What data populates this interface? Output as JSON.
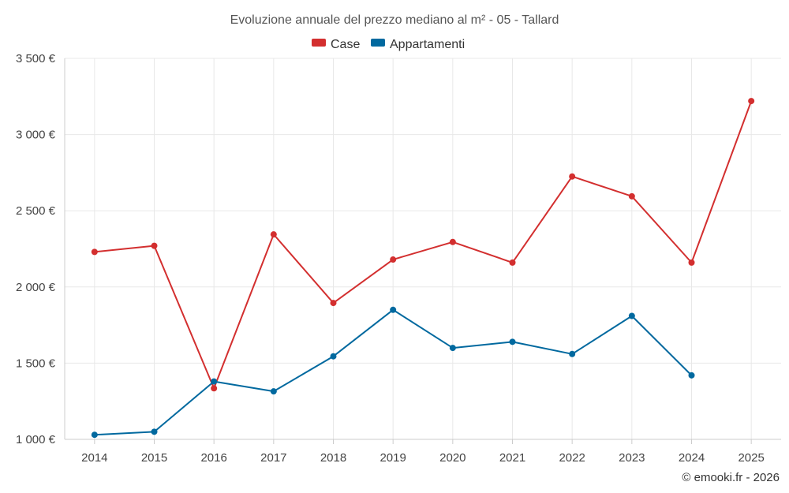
{
  "chart_data": {
    "type": "line",
    "title": "Evoluzione annuale del prezzo mediano al m² - 05 - Tallard",
    "categories": [
      "2014",
      "2015",
      "2016",
      "2017",
      "2018",
      "2019",
      "2020",
      "2021",
      "2022",
      "2023",
      "2024",
      "2025"
    ],
    "series": [
      {
        "name": "Case",
        "color": "#d32f2f",
        "values": [
          2230,
          2270,
          1335,
          2345,
          1895,
          2180,
          2295,
          2160,
          2725,
          2595,
          2160,
          3220
        ]
      },
      {
        "name": "Appartamenti",
        "color": "#01699f",
        "values": [
          1030,
          1050,
          1380,
          1315,
          1545,
          1850,
          1600,
          1640,
          1560,
          1810,
          1420,
          null
        ]
      }
    ],
    "ylim": [
      1000,
      3500
    ],
    "yticks": [
      1000,
      1500,
      2000,
      2500,
      3000,
      3500
    ],
    "ytick_labels": [
      "1 000 €",
      "1 500 €",
      "2 000 €",
      "2 500 €",
      "3 000 €",
      "3 500 €"
    ],
    "legend_position": "top-center",
    "grid": true,
    "credit": "© emooki.fr - 2026"
  }
}
